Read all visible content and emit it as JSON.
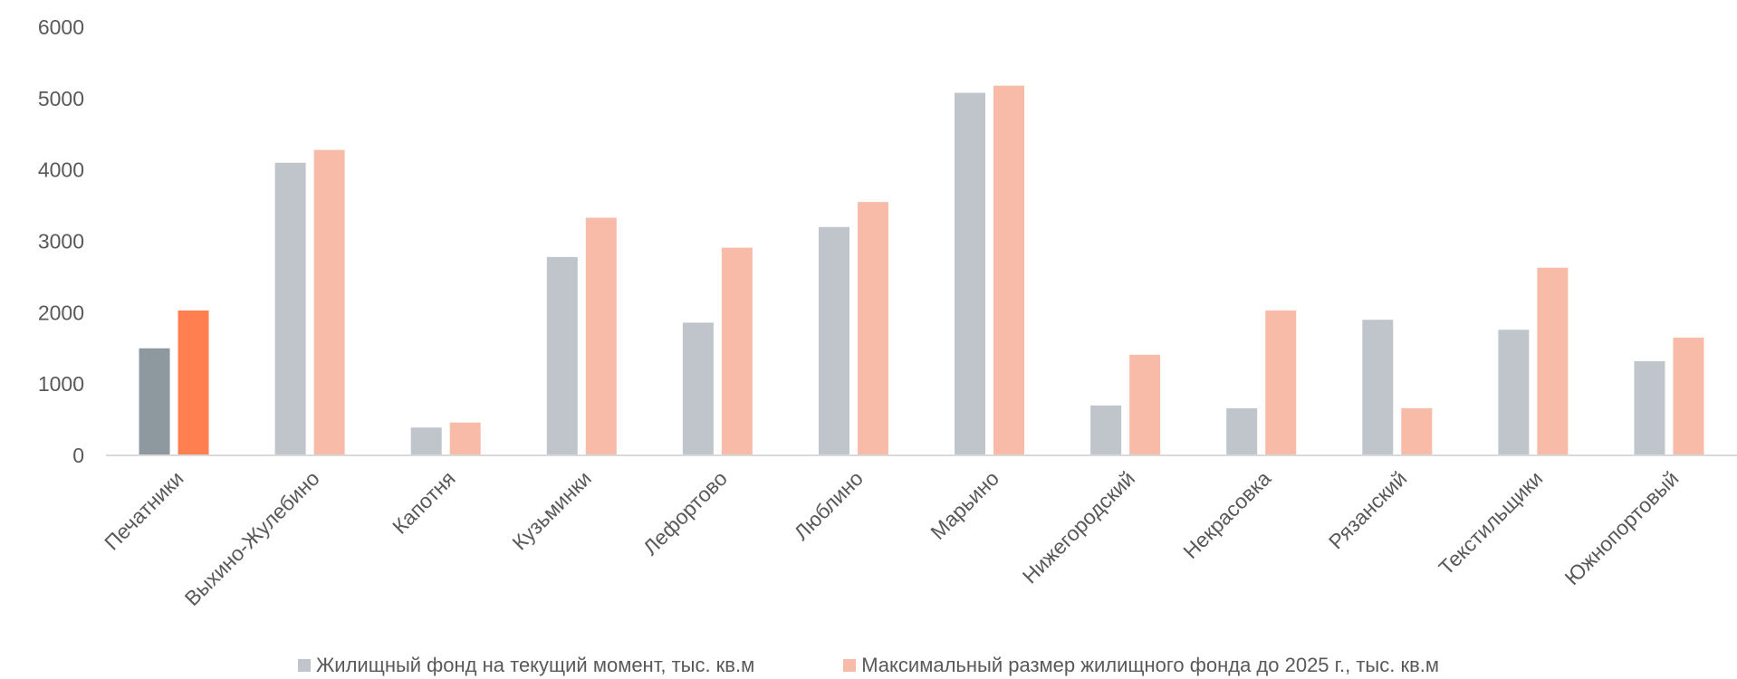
{
  "chart_data": {
    "type": "bar",
    "title": "",
    "xlabel": "",
    "ylabel": "",
    "ylim": [
      0,
      6000
    ],
    "yticks": [
      "0",
      "1000",
      "2000",
      "3000",
      "4000",
      "5000",
      "6000"
    ],
    "grid": false,
    "legend_position": "bottom",
    "categories": [
      "Печатники",
      "Выхино-Жулебино",
      "Капотня",
      "Кузьминки",
      "Лефортово",
      "Люблино",
      "Марьино",
      "Нижегородский",
      "Некрасовка",
      "Рязанский",
      "Текстильщики",
      "Южнопортовый"
    ],
    "series": [
      {
        "name": "Жилищный фонд на текущий момент, тыс. кв.м",
        "color": "#BFC5CA",
        "highlight_color": "#8E989F",
        "values": [
          1500,
          4100,
          390,
          2780,
          1860,
          3200,
          5080,
          700,
          660,
          1900,
          1760,
          1320
        ]
      },
      {
        "name": "Максимальный размер жилищного фонда до 2025 г., тыс. кв.м",
        "color": "#F8BBA7",
        "highlight_color": "#FF7F50",
        "values": [
          2030,
          4280,
          460,
          3330,
          2910,
          3550,
          5180,
          1410,
          2030,
          660,
          2630,
          1650
        ]
      }
    ],
    "highlight_category_index": 0,
    "axis_color": "#D9D9D9"
  }
}
